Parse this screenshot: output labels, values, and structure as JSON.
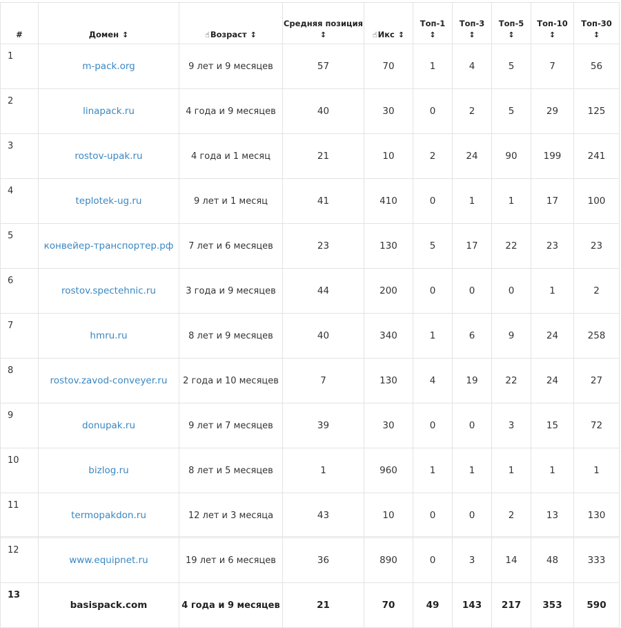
{
  "headers": {
    "num": "#",
    "domain": "Домен",
    "age": "Возраст",
    "avg_line1": "Средняя позиция",
    "iks": "Икс",
    "top1": "Топ-1",
    "top3": "Топ-3",
    "top5": "Топ-5",
    "top10": "Топ-10",
    "top30": "Топ-30",
    "sort_glyph": "↕",
    "hand_glyph": "☝"
  },
  "rows": [
    {
      "n": "1",
      "domain": "m-pack.org",
      "age": "9 лет и 9 месяцев",
      "avg": "57",
      "iks": "70",
      "t1": "1",
      "t3": "4",
      "t5": "5",
      "t10": "7",
      "t30": "56"
    },
    {
      "n": "2",
      "domain": "linapack.ru",
      "age": "4 года и 9 месяцев",
      "avg": "40",
      "iks": "30",
      "t1": "0",
      "t3": "2",
      "t5": "5",
      "t10": "29",
      "t30": "125"
    },
    {
      "n": "3",
      "domain": "rostov-upak.ru",
      "age": "4 года и 1 месяц",
      "avg": "21",
      "iks": "10",
      "t1": "2",
      "t3": "24",
      "t5": "90",
      "t10": "199",
      "t30": "241"
    },
    {
      "n": "4",
      "domain": "teplotek-ug.ru",
      "age": "9 лет и 1 месяц",
      "avg": "41",
      "iks": "410",
      "t1": "0",
      "t3": "1",
      "t5": "1",
      "t10": "17",
      "t30": "100"
    },
    {
      "n": "5",
      "domain": "конвейер-транспортер.рф",
      "age": "7 лет и 6 месяцев",
      "avg": "23",
      "iks": "130",
      "t1": "5",
      "t3": "17",
      "t5": "22",
      "t10": "23",
      "t30": "23"
    },
    {
      "n": "6",
      "domain": "rostov.spectehnic.ru",
      "age": "3 года и 9 месяцев",
      "avg": "44",
      "iks": "200",
      "t1": "0",
      "t3": "0",
      "t5": "0",
      "t10": "1",
      "t30": "2"
    },
    {
      "n": "7",
      "domain": "hmru.ru",
      "age": "8 лет и 9 месяцев",
      "avg": "40",
      "iks": "340",
      "t1": "1",
      "t3": "6",
      "t5": "9",
      "t10": "24",
      "t30": "258"
    },
    {
      "n": "8",
      "domain": "rostov.zavod-conveyer.ru",
      "age": "2 года и 10 месяцев",
      "avg": "7",
      "iks": "130",
      "t1": "4",
      "t3": "19",
      "t5": "22",
      "t10": "24",
      "t30": "27"
    },
    {
      "n": "9",
      "domain": "donupak.ru",
      "age": "9 лет и 7 месяцев",
      "avg": "39",
      "iks": "30",
      "t1": "0",
      "t3": "0",
      "t5": "3",
      "t10": "15",
      "t30": "72"
    },
    {
      "n": "10",
      "domain": "bizlog.ru",
      "age": "8 лет и 5 месяцев",
      "avg": "1",
      "iks": "960",
      "t1": "1",
      "t3": "1",
      "t5": "1",
      "t10": "1",
      "t30": "1"
    },
    {
      "n": "11",
      "domain": "termopakdon.ru",
      "age": "12 лет и 3 месяца",
      "avg": "43",
      "iks": "10",
      "t1": "0",
      "t3": "0",
      "t5": "2",
      "t10": "13",
      "t30": "130"
    },
    {
      "n": "12",
      "domain": "www.equipnet.ru",
      "age": "19 лет и 6 месяцев",
      "avg": "36",
      "iks": "890",
      "t1": "0",
      "t3": "3",
      "t5": "14",
      "t10": "48",
      "t30": "333"
    }
  ],
  "total": {
    "n": "13",
    "domain": "basispack.com",
    "age": "4 года и 9 месяцев",
    "avg": "21",
    "iks": "70",
    "t1": "49",
    "t3": "143",
    "t5": "217",
    "t10": "353",
    "t30": "590"
  },
  "colors": {
    "link": "#3a87c2",
    "border": "#e3e3e3",
    "text": "#333333"
  }
}
